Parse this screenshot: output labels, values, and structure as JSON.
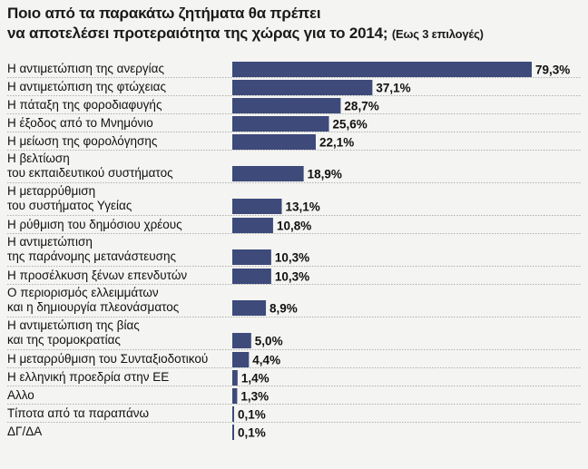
{
  "title": {
    "line1": "Ποιο από τα παρακάτω ζητήματα θα πρέπει",
    "line2": "να αποτελέσει προτεραιότητα της χώρας για το 2014;",
    "subtitle": "(Εως 3 επιλογές)"
  },
  "colors": {
    "bar": "#3d4a7a",
    "background": "#f4f4f2"
  },
  "chart_data": {
    "type": "bar",
    "orientation": "horizontal",
    "unit": "%",
    "categories": [
      [
        "Η αντιμετώπιση της ανεργίας"
      ],
      [
        "Η αντιμετώπιση της φτώχειας"
      ],
      [
        "Η πάταξη της φοροδιαφυγής"
      ],
      [
        "Η έξοδος από το Μνημόνιο"
      ],
      [
        "Η μείωση της φορολόγησης"
      ],
      [
        "Η βελτίωση",
        "του εκπαιδευτικού συστήματος"
      ],
      [
        "Η μεταρρύθμιση",
        "του συστήματος Υγείας"
      ],
      [
        "Η ρύθμιση  του δημόσιου χρέους"
      ],
      [
        "Η αντιμετώπιση",
        "της παράνομης μετανάστευσης"
      ],
      [
        "Η προσέλκυση ξένων επενδυτών"
      ],
      [
        "Ο περιορισμός ελλειμμάτων",
        "και η δημιουργία πλεονάσματος"
      ],
      [
        "Η αντιμετώπιση της βίας",
        "και της τρομοκρατίας"
      ],
      [
        "Η μεταρρύθμιση του Συνταξιοδοτικού"
      ],
      [
        "Η ελληνική προεδρία στην ΕΕ"
      ],
      [
        "Αλλο"
      ],
      [
        "Τίποτα από τα παραπάνω"
      ],
      [
        "ΔΓ/ΔΑ"
      ]
    ],
    "values": [
      79.3,
      37.1,
      28.7,
      25.6,
      22.1,
      18.9,
      13.1,
      10.8,
      10.3,
      10.3,
      8.9,
      5.0,
      4.4,
      1.4,
      1.3,
      0.1,
      0.1
    ],
    "value_labels": [
      "79,3%",
      "37,1%",
      "28,7%",
      "25,6%",
      "22,1%",
      "18,9%",
      "13,1%",
      "10,8%",
      "10,3%",
      "10,3%",
      "8,9%",
      "5,0%",
      "4,4%",
      "1,4%",
      "1,3%",
      "0,1%",
      "0,1%"
    ],
    "xlim": [
      0,
      100
    ],
    "grid": false,
    "legend": "none"
  }
}
